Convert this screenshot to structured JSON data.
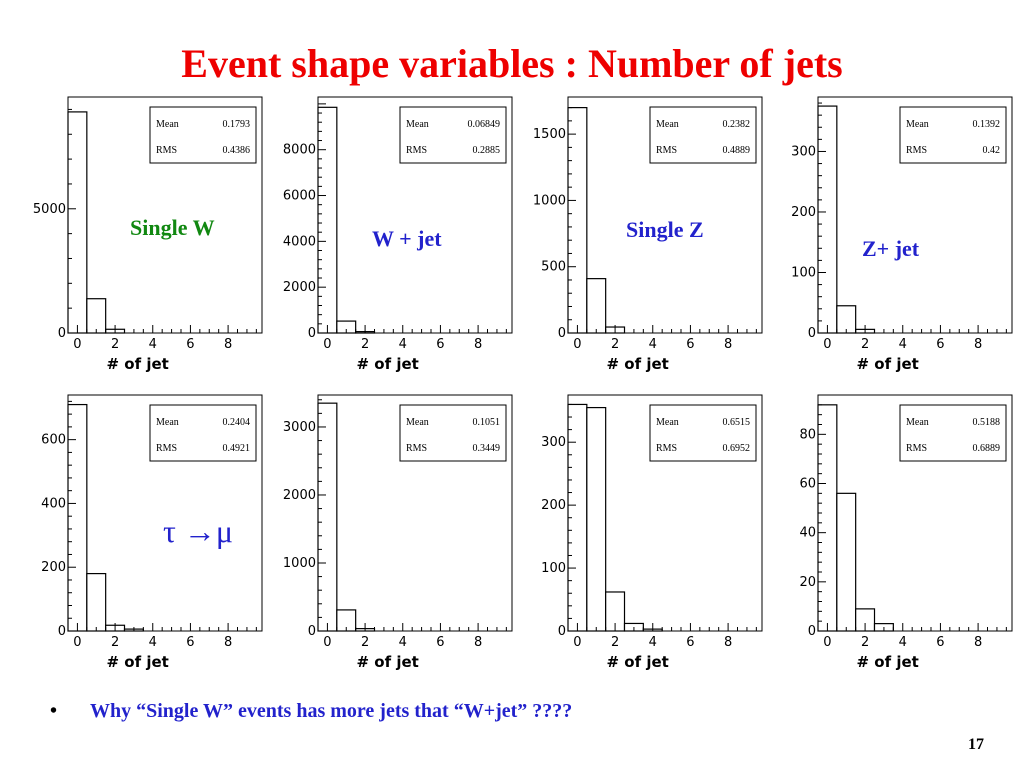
{
  "title": "Event shape variables : Number of jets",
  "labels": {
    "single_w": "Single W",
    "w_jet": "W + jet",
    "single_z": "Single Z",
    "z_jet": "Z+ jet",
    "tau_mu": "τ →μ"
  },
  "bullet": {
    "symbol": "•",
    "text": "Why “Single W” events has more jets that “W+jet” ????"
  },
  "page_number": "17",
  "colors": {
    "title": "#ee0000",
    "single_w": "#118811",
    "blue": "#2222cc"
  },
  "chart_data": [
    {
      "type": "bar",
      "xlabel": "# of jet",
      "xticks": [
        0,
        2,
        4,
        6,
        8
      ],
      "xlim": [
        -0.5,
        9.8
      ],
      "yticks": [
        0,
        5000
      ],
      "ylim": [
        0,
        9500
      ],
      "stats": {
        "mean_label": "Mean",
        "mean": "0.1793",
        "rms_label": "RMS",
        "rms": "0.4386"
      },
      "x": [
        0,
        1,
        2
      ],
      "values": [
        8900,
        1380,
        150
      ]
    },
    {
      "type": "bar",
      "xlabel": "# of jet",
      "xticks": [
        0,
        2,
        4,
        6,
        8
      ],
      "xlim": [
        -0.5,
        9.8
      ],
      "yticks": [
        0,
        2000,
        4000,
        6000,
        8000
      ],
      "ylim": [
        0,
        10300
      ],
      "stats": {
        "mean_label": "Mean",
        "mean": "0.06849",
        "rms_label": "RMS",
        "rms": "0.2885"
      },
      "x": [
        0,
        1,
        2
      ],
      "values": [
        9850,
        520,
        60
      ]
    },
    {
      "type": "bar",
      "xlabel": "# of jet",
      "xticks": [
        0,
        2,
        4,
        6,
        8
      ],
      "xlim": [
        -0.5,
        9.8
      ],
      "yticks": [
        0,
        500,
        1000,
        1500
      ],
      "ylim": [
        0,
        1780
      ],
      "stats": {
        "mean_label": "Mean",
        "mean": "0.2382",
        "rms_label": "RMS",
        "rms": "0.4889"
      },
      "x": [
        0,
        1,
        2
      ],
      "values": [
        1700,
        410,
        45
      ]
    },
    {
      "type": "bar",
      "xlabel": "# of jet",
      "xticks": [
        0,
        2,
        4,
        6,
        8
      ],
      "xlim": [
        -0.5,
        9.8
      ],
      "yticks": [
        0,
        100,
        200,
        300
      ],
      "ylim": [
        0,
        390
      ],
      "stats": {
        "mean_label": "Mean",
        "mean": "0.1392",
        "rms_label": "RMS",
        "rms": "0.42"
      },
      "x": [
        0,
        1,
        2
      ],
      "values": [
        375,
        45,
        6
      ]
    },
    {
      "type": "bar",
      "xlabel": "# of jet",
      "xticks": [
        0,
        2,
        4,
        6,
        8
      ],
      "xlim": [
        -0.5,
        9.8
      ],
      "yticks": [
        0,
        200,
        400,
        600
      ],
      "ylim": [
        0,
        740
      ],
      "stats": {
        "mean_label": "Mean",
        "mean": "0.2404",
        "rms_label": "RMS",
        "rms": "0.4921"
      },
      "x": [
        0,
        1,
        2,
        3
      ],
      "values": [
        710,
        180,
        18,
        6
      ]
    },
    {
      "type": "bar",
      "xlabel": "# of jet",
      "xticks": [
        0,
        2,
        4,
        6,
        8
      ],
      "xlim": [
        -0.5,
        9.8
      ],
      "yticks": [
        0,
        1000,
        2000,
        3000
      ],
      "ylim": [
        0,
        3470
      ],
      "stats": {
        "mean_label": "Mean",
        "mean": "0.1051",
        "rms_label": "RMS",
        "rms": "0.3449"
      },
      "x": [
        0,
        1,
        2
      ],
      "values": [
        3350,
        310,
        35
      ]
    },
    {
      "type": "bar",
      "xlabel": "# of jet",
      "xticks": [
        0,
        2,
        4,
        6,
        8
      ],
      "xlim": [
        -0.5,
        9.8
      ],
      "yticks": [
        0,
        100,
        200,
        300
      ],
      "ylim": [
        0,
        375
      ],
      "stats": {
        "mean_label": "Mean",
        "mean": "0.6515",
        "rms_label": "RMS",
        "rms": "0.6952"
      },
      "x": [
        0,
        1,
        2,
        3,
        4
      ],
      "values": [
        360,
        355,
        62,
        12,
        3
      ]
    },
    {
      "type": "bar",
      "xlabel": "# of jet",
      "xticks": [
        0,
        2,
        4,
        6,
        8
      ],
      "xlim": [
        -0.5,
        9.8
      ],
      "yticks": [
        0,
        20,
        40,
        60,
        80
      ],
      "ylim": [
        0,
        96
      ],
      "stats": {
        "mean_label": "Mean",
        "mean": "0.5188",
        "rms_label": "RMS",
        "rms": "0.6889"
      },
      "x": [
        0,
        1,
        2,
        3
      ],
      "values": [
        92,
        56,
        9,
        3
      ]
    }
  ]
}
